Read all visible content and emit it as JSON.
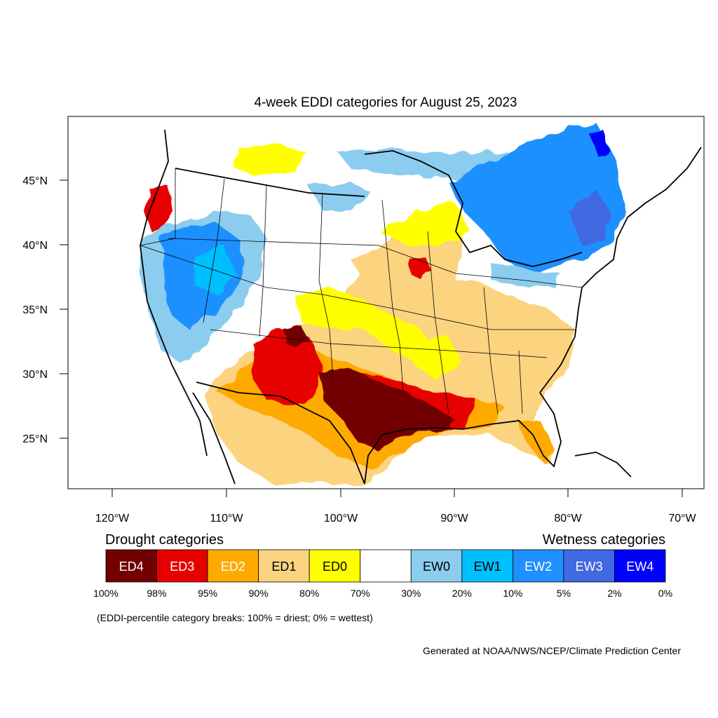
{
  "title": "4-week EDDI categories for August 25, 2023",
  "lat_labels": [
    "45°N",
    "40°N",
    "35°N",
    "30°N",
    "25°N"
  ],
  "lon_labels": [
    "120°W",
    "110°W",
    "100°W",
    "90°W",
    "80°W",
    "70°W"
  ],
  "legend": {
    "drought_heading": "Drought categories",
    "wetness_heading": "Wetness categories",
    "categories": [
      {
        "label": "ED4",
        "color": "#730000",
        "text_color": "#ffffff"
      },
      {
        "label": "ED3",
        "color": "#e60000",
        "text_color": "#ffffff"
      },
      {
        "label": "ED2",
        "color": "#ffaa00",
        "text_color": "#ffffff"
      },
      {
        "label": "ED1",
        "color": "#fcd37f",
        "text_color": "#000000"
      },
      {
        "label": "ED0",
        "color": "#ffff00",
        "text_color": "#000000"
      },
      {
        "label": "",
        "color": "#ffffff",
        "text_color": "#000000"
      },
      {
        "label": "EW0",
        "color": "#8ccdef",
        "text_color": "#000000"
      },
      {
        "label": "EW1",
        "color": "#00bfff",
        "text_color": "#000000"
      },
      {
        "label": "EW2",
        "color": "#1e90ff",
        "text_color": "#ffffff"
      },
      {
        "label": "EW3",
        "color": "#4169e1",
        "text_color": "#ffffff"
      },
      {
        "label": "EW4",
        "color": "#0000ff",
        "text_color": "#ffffff"
      }
    ],
    "breaks": [
      "100%",
      "98%",
      "95%",
      "90%",
      "80%",
      "70%",
      "30%",
      "20%",
      "10%",
      "5%",
      "2%",
      "0%"
    ]
  },
  "note": "(EDDI-percentile category breaks: 100% = driest; 0% = wettest)",
  "credit": "Generated at NOAA/NWS/NCEP/Climate Prediction Center"
}
